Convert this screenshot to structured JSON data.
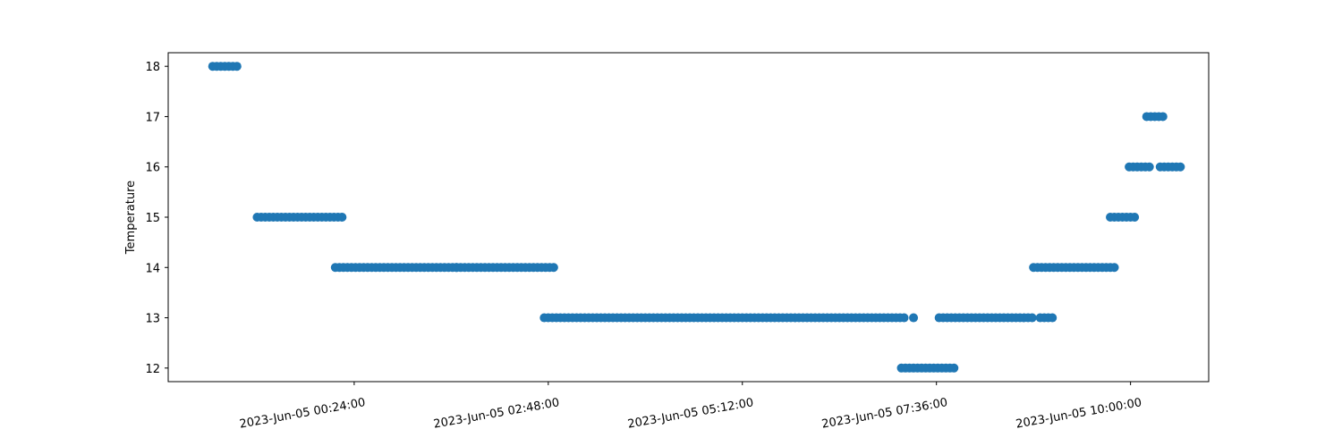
{
  "chart_data": {
    "type": "scatter",
    "title": "",
    "xlabel": "",
    "ylabel": "Temperature",
    "xlim": [
      "2023-06-04T22:06:00",
      "2023-06-05T10:58:00"
    ],
    "ylim": [
      11.73,
      18.27
    ],
    "x_ticks": [
      "2023-Jun-05 00:24:00",
      "2023-Jun-05 02:48:00",
      "2023-Jun-05 05:12:00",
      "2023-Jun-05 07:36:00",
      "2023-Jun-05 10:00:00"
    ],
    "x_tick_times": [
      "2023-06-05T00:24:00",
      "2023-06-05T02:48:00",
      "2023-06-05T05:12:00",
      "2023-06-05T07:36:00",
      "2023-06-05T10:00:00"
    ],
    "y_ticks": [
      12,
      13,
      14,
      15,
      16,
      17,
      18
    ],
    "grid": false,
    "marker_color": "#1f77b4",
    "series": [
      {
        "segments": [
          {
            "start": "2023-06-04T22:39:00",
            "end": "2023-06-04T22:58:00",
            "y": 18
          },
          {
            "start": "2023-06-04T23:12:00",
            "end": "2023-06-05T00:15:00",
            "y": 15
          },
          {
            "start": "2023-06-05T00:10:00",
            "end": "2023-06-05T01:42:00",
            "y": 14
          },
          {
            "start": "2023-06-05T01:40:00",
            "end": "2023-06-05T02:52:00",
            "y": 14
          },
          {
            "start": "2023-06-05T02:45:00",
            "end": "2023-06-05T07:14:00",
            "y": 13
          },
          {
            "start": "2023-06-05T07:19:00",
            "end": "2023-06-05T07:20:00",
            "y": 13
          },
          {
            "start": "2023-06-05T07:10:00",
            "end": "2023-06-05T07:49:00",
            "y": 12
          },
          {
            "start": "2023-06-05T07:38:00",
            "end": "2023-06-05T08:49:00",
            "y": 13
          },
          {
            "start": "2023-06-05T08:53:00",
            "end": "2023-06-05T09:02:00",
            "y": 13
          },
          {
            "start": "2023-06-05T08:48:00",
            "end": "2023-06-05T09:49:00",
            "y": 14
          },
          {
            "start": "2023-06-05T09:45:00",
            "end": "2023-06-05T10:03:00",
            "y": 15
          },
          {
            "start": "2023-06-05T09:59:00",
            "end": "2023-06-05T10:16:00",
            "y": 16
          },
          {
            "start": "2023-06-05T10:12:00",
            "end": "2023-06-05T10:24:00",
            "y": 17
          },
          {
            "start": "2023-06-05T10:22:00",
            "end": "2023-06-05T10:37:00",
            "y": 16
          }
        ]
      }
    ]
  }
}
